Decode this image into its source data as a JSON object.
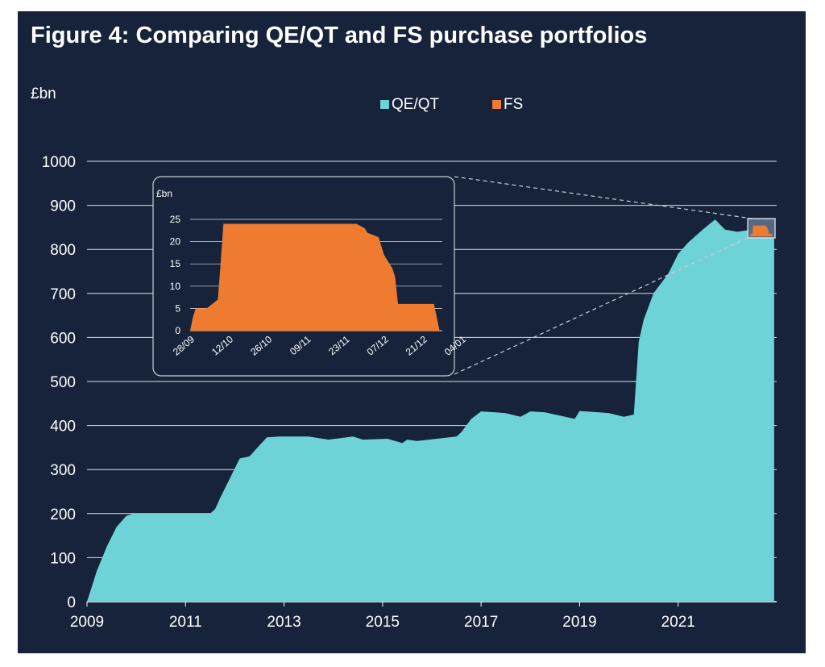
{
  "title": "Figure 4:  Comparing QE/QT and FS purchase portfolios",
  "colors": {
    "background": "#16233a",
    "qe": "#6dd3d6",
    "fs": "#ee7b30",
    "text": "#ffffff",
    "grid": "#ffffff"
  },
  "chart_data": [
    {
      "type": "area",
      "unit_label": "£bn",
      "legend": [
        "QE/QT",
        "FS"
      ],
      "legend_position": "top",
      "ylim": [
        0,
        1000
      ],
      "yticks": [
        0,
        100,
        200,
        300,
        400,
        500,
        600,
        700,
        800,
        900,
        1000
      ],
      "xlim": [
        2009,
        2023
      ],
      "xticks": [
        "2009",
        "2011",
        "2013",
        "2015",
        "2017",
        "2019",
        "2021"
      ],
      "grid": "horizontal",
      "series": [
        {
          "name": "QE/QT",
          "x": [
            2009.0,
            2009.2,
            2009.4,
            2009.6,
            2009.8,
            2009.95,
            2010.2,
            2011.5,
            2011.6,
            2011.7,
            2011.9,
            2012.1,
            2012.3,
            2012.5,
            2012.65,
            2012.9,
            2013.5,
            2013.9,
            2014.4,
            2014.6,
            2015.1,
            2015.4,
            2015.5,
            2015.7,
            2016.5,
            2016.6,
            2016.8,
            2017.0,
            2017.3,
            2017.5,
            2017.8,
            2018.0,
            2018.3,
            2018.9,
            2019.0,
            2019.4,
            2019.6,
            2019.9,
            2020.1,
            2020.2,
            2020.3,
            2020.5,
            2020.8,
            2021.0,
            2021.2,
            2021.5,
            2021.75,
            2021.95,
            2022.2,
            2022.5,
            2022.7,
            2022.95
          ],
          "values": [
            0,
            70,
            125,
            170,
            195,
            200,
            200,
            200,
            210,
            235,
            280,
            325,
            330,
            355,
            373,
            375,
            375,
            368,
            375,
            368,
            370,
            360,
            368,
            365,
            375,
            385,
            415,
            432,
            430,
            428,
            420,
            432,
            430,
            415,
            433,
            430,
            428,
            420,
            425,
            590,
            640,
            700,
            745,
            790,
            815,
            845,
            868,
            845,
            840,
            845,
            838,
            825
          ]
        }
      ]
    },
    {
      "type": "area",
      "unit_label": "£bn",
      "ylim": [
        0,
        25
      ],
      "yticks": [
        0,
        5,
        10,
        15,
        20,
        25
      ],
      "xticks": [
        "28/09",
        "12/10",
        "26/10",
        "09/11",
        "23/11",
        "07/12",
        "21/12",
        "04/01"
      ],
      "xlim_days": [
        0,
        91
      ],
      "grid": "horizontal",
      "series": [
        {
          "name": "FS",
          "x_days": [
            0,
            1,
            2,
            3,
            6,
            8,
            10,
            11,
            12,
            13,
            14,
            20,
            30,
            40,
            50,
            60,
            63,
            64,
            66,
            68,
            69,
            70,
            71,
            72,
            73,
            74,
            75,
            85,
            88,
            90
          ],
          "values": [
            0,
            3,
            5,
            5,
            5,
            6,
            7,
            15,
            24,
            24,
            24,
            24,
            24,
            24,
            24,
            24,
            23,
            22,
            21.5,
            21,
            19,
            17,
            16,
            15,
            14,
            12,
            6,
            6,
            6,
            0
          ]
        }
      ]
    }
  ]
}
